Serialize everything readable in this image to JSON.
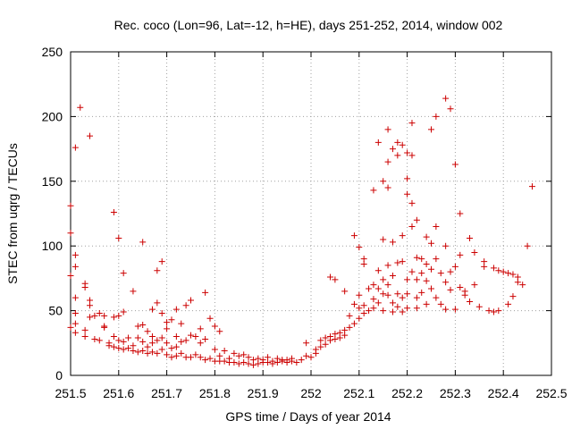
{
  "chart_data": {
    "type": "scatter",
    "title": "Rec. coco (Lon=96, Lat=-12, h=HE), days 251-252, 2014, window 002",
    "xlabel": "GPS time / Days of year 2014",
    "ylabel": "STEC from uqrg / TECUs",
    "xlim": [
      251.5,
      252.5
    ],
    "ylim": [
      0,
      250
    ],
    "xticks": [
      251.5,
      251.6,
      251.7,
      251.8,
      251.9,
      252.0,
      252.1,
      252.2,
      252.3,
      252.4,
      252.5
    ],
    "xtick_labels": [
      "251.5",
      "251.6",
      "251.7",
      "251.8",
      "251.9",
      "252",
      "252.1",
      "252.2",
      "252.3",
      "252.4",
      "252.5"
    ],
    "yticks": [
      0,
      50,
      100,
      150,
      200,
      250
    ],
    "ytick_labels": [
      "0",
      "50",
      "100",
      "150",
      "200",
      "250"
    ],
    "grid": true,
    "marker": "plus",
    "color": "#cc0000",
    "series": [
      {
        "name": "",
        "points": [
          [
            251.5,
            131
          ],
          [
            251.5,
            110
          ],
          [
            251.5,
            77
          ],
          [
            251.5,
            37
          ],
          [
            251.51,
            176
          ],
          [
            251.51,
            93
          ],
          [
            251.51,
            84
          ],
          [
            251.51,
            60
          ],
          [
            251.51,
            48
          ],
          [
            251.51,
            40
          ],
          [
            251.51,
            33
          ],
          [
            251.52,
            207
          ],
          [
            251.53,
            71
          ],
          [
            251.53,
            68
          ],
          [
            251.53,
            35
          ],
          [
            251.53,
            30
          ],
          [
            251.54,
            185
          ],
          [
            251.54,
            58
          ],
          [
            251.54,
            54
          ],
          [
            251.54,
            45
          ],
          [
            251.55,
            46
          ],
          [
            251.55,
            28
          ],
          [
            251.56,
            48
          ],
          [
            251.56,
            27
          ],
          [
            251.57,
            46
          ],
          [
            251.57,
            38
          ],
          [
            251.57,
            37
          ],
          [
            251.58,
            25
          ],
          [
            251.58,
            23
          ],
          [
            251.59,
            126
          ],
          [
            251.59,
            45
          ],
          [
            251.59,
            30
          ],
          [
            251.59,
            22
          ],
          [
            251.6,
            106
          ],
          [
            251.6,
            46
          ],
          [
            251.6,
            27
          ],
          [
            251.6,
            21
          ],
          [
            251.61,
            79
          ],
          [
            251.61,
            49
          ],
          [
            251.61,
            26
          ],
          [
            251.61,
            20
          ],
          [
            251.62,
            29
          ],
          [
            251.62,
            21
          ],
          [
            251.63,
            65
          ],
          [
            251.63,
            23
          ],
          [
            251.63,
            19
          ],
          [
            251.64,
            38
          ],
          [
            251.64,
            18
          ],
          [
            251.64,
            29
          ],
          [
            251.65,
            103
          ],
          [
            251.65,
            39
          ],
          [
            251.65,
            26
          ],
          [
            251.65,
            19
          ],
          [
            251.66,
            34
          ],
          [
            251.66,
            22
          ],
          [
            251.66,
            17
          ],
          [
            251.67,
            51
          ],
          [
            251.67,
            30
          ],
          [
            251.67,
            25
          ],
          [
            251.67,
            18
          ],
          [
            251.68,
            81
          ],
          [
            251.68,
            56
          ],
          [
            251.68,
            27
          ],
          [
            251.68,
            17
          ],
          [
            251.69,
            88
          ],
          [
            251.69,
            48
          ],
          [
            251.69,
            29
          ],
          [
            251.69,
            20
          ],
          [
            251.7,
            41
          ],
          [
            251.7,
            36
          ],
          [
            251.7,
            25
          ],
          [
            251.7,
            16
          ],
          [
            251.71,
            43
          ],
          [
            251.71,
            21
          ],
          [
            251.71,
            14
          ],
          [
            251.72,
            51
          ],
          [
            251.72,
            30
          ],
          [
            251.72,
            22
          ],
          [
            251.72,
            15
          ],
          [
            251.73,
            40
          ],
          [
            251.73,
            26
          ],
          [
            251.73,
            17
          ],
          [
            251.74,
            54
          ],
          [
            251.74,
            27
          ],
          [
            251.74,
            14
          ],
          [
            251.75,
            58
          ],
          [
            251.75,
            31
          ],
          [
            251.75,
            14
          ],
          [
            251.76,
            30
          ],
          [
            251.76,
            16
          ],
          [
            251.77,
            36
          ],
          [
            251.77,
            25
          ],
          [
            251.77,
            14
          ],
          [
            251.78,
            64
          ],
          [
            251.78,
            28
          ],
          [
            251.78,
            12
          ],
          [
            251.79,
            44
          ],
          [
            251.79,
            13
          ],
          [
            251.8,
            38
          ],
          [
            251.8,
            20
          ],
          [
            251.8,
            11
          ],
          [
            251.81,
            34
          ],
          [
            251.81,
            15
          ],
          [
            251.81,
            11
          ],
          [
            251.82,
            19
          ],
          [
            251.82,
            11
          ],
          [
            251.83,
            13
          ],
          [
            251.83,
            10
          ],
          [
            251.84,
            17
          ],
          [
            251.84,
            10
          ],
          [
            251.85,
            15
          ],
          [
            251.85,
            9
          ],
          [
            251.86,
            16
          ],
          [
            251.86,
            10
          ],
          [
            251.87,
            14
          ],
          [
            251.87,
            9
          ],
          [
            251.88,
            12
          ],
          [
            251.88,
            8
          ],
          [
            251.89,
            13
          ],
          [
            251.89,
            9
          ],
          [
            251.9,
            12
          ],
          [
            251.9,
            10
          ],
          [
            251.91,
            14
          ],
          [
            251.91,
            10
          ],
          [
            251.92,
            11
          ],
          [
            251.92,
            9
          ],
          [
            251.93,
            13
          ],
          [
            251.93,
            10
          ],
          [
            251.94,
            11
          ],
          [
            251.94,
            12
          ],
          [
            251.95,
            12
          ],
          [
            251.95,
            10
          ],
          [
            251.96,
            13
          ],
          [
            251.96,
            11
          ],
          [
            251.97,
            10
          ],
          [
            251.98,
            12
          ],
          [
            251.99,
            25
          ],
          [
            251.99,
            15
          ],
          [
            252.0,
            14
          ],
          [
            252.01,
            20
          ],
          [
            252.01,
            17
          ],
          [
            252.02,
            27
          ],
          [
            252.02,
            22
          ],
          [
            252.03,
            29
          ],
          [
            252.03,
            24
          ],
          [
            252.04,
            76
          ],
          [
            252.04,
            30
          ],
          [
            252.04,
            27
          ],
          [
            252.05,
            74
          ],
          [
            252.05,
            32
          ],
          [
            252.05,
            28
          ],
          [
            252.06,
            33
          ],
          [
            252.06,
            29
          ],
          [
            252.07,
            65
          ],
          [
            252.07,
            35
          ],
          [
            252.07,
            31
          ],
          [
            252.08,
            46
          ],
          [
            252.08,
            37
          ],
          [
            252.09,
            108
          ],
          [
            252.09,
            55
          ],
          [
            252.09,
            40
          ],
          [
            252.1,
            99
          ],
          [
            252.1,
            62
          ],
          [
            252.1,
            52
          ],
          [
            252.1,
            44
          ],
          [
            252.11,
            90
          ],
          [
            252.11,
            86
          ],
          [
            252.11,
            54
          ],
          [
            252.11,
            48
          ],
          [
            252.12,
            67
          ],
          [
            252.12,
            50
          ],
          [
            252.13,
            143
          ],
          [
            252.13,
            70
          ],
          [
            252.13,
            59
          ],
          [
            252.13,
            52
          ],
          [
            252.14,
            180
          ],
          [
            252.14,
            81
          ],
          [
            252.14,
            67
          ],
          [
            252.14,
            56
          ],
          [
            252.15,
            150
          ],
          [
            252.15,
            105
          ],
          [
            252.15,
            74
          ],
          [
            252.15,
            63
          ],
          [
            252.15,
            50
          ],
          [
            252.16,
            190
          ],
          [
            252.16,
            165
          ],
          [
            252.16,
            145
          ],
          [
            252.16,
            85
          ],
          [
            252.16,
            70
          ],
          [
            252.16,
            62
          ],
          [
            252.17,
            175
          ],
          [
            252.17,
            103
          ],
          [
            252.17,
            77
          ],
          [
            252.17,
            56
          ],
          [
            252.17,
            49
          ],
          [
            252.18,
            180
          ],
          [
            252.18,
            170
          ],
          [
            252.18,
            87
          ],
          [
            252.18,
            63
          ],
          [
            252.18,
            53
          ],
          [
            252.19,
            178
          ],
          [
            252.19,
            108
          ],
          [
            252.19,
            88
          ],
          [
            252.19,
            60
          ],
          [
            252.19,
            49
          ],
          [
            252.2,
            172
          ],
          [
            252.2,
            152
          ],
          [
            252.2,
            140
          ],
          [
            252.2,
            74
          ],
          [
            252.2,
            63
          ],
          [
            252.2,
            52
          ],
          [
            252.21,
            195
          ],
          [
            252.21,
            170
          ],
          [
            252.21,
            133
          ],
          [
            252.21,
            115
          ],
          [
            252.21,
            80
          ],
          [
            252.22,
            120
          ],
          [
            252.22,
            91
          ],
          [
            252.22,
            74
          ],
          [
            252.22,
            60
          ],
          [
            252.22,
            52
          ],
          [
            252.23,
            90
          ],
          [
            252.23,
            79
          ],
          [
            252.23,
            64
          ],
          [
            252.24,
            107
          ],
          [
            252.24,
            86
          ],
          [
            252.24,
            73
          ],
          [
            252.24,
            55
          ],
          [
            252.25,
            190
          ],
          [
            252.25,
            102
          ],
          [
            252.25,
            82
          ],
          [
            252.25,
            67
          ],
          [
            252.26,
            200
          ],
          [
            252.26,
            115
          ],
          [
            252.26,
            90
          ],
          [
            252.26,
            60
          ],
          [
            252.27,
            79
          ],
          [
            252.27,
            55
          ],
          [
            252.28,
            214
          ],
          [
            252.28,
            100
          ],
          [
            252.28,
            72
          ],
          [
            252.28,
            51
          ],
          [
            252.29,
            206
          ],
          [
            252.29,
            80
          ],
          [
            252.29,
            66
          ],
          [
            252.3,
            163
          ],
          [
            252.3,
            84
          ],
          [
            252.3,
            51
          ],
          [
            252.31,
            125
          ],
          [
            252.31,
            93
          ],
          [
            252.31,
            68
          ],
          [
            252.32,
            65
          ],
          [
            252.32,
            62
          ],
          [
            252.33,
            106
          ],
          [
            252.33,
            57
          ],
          [
            252.34,
            70
          ],
          [
            252.34,
            95
          ],
          [
            252.35,
            53
          ],
          [
            252.36,
            88
          ],
          [
            252.36,
            84
          ],
          [
            252.37,
            50
          ],
          [
            252.38,
            83
          ],
          [
            252.38,
            49
          ],
          [
            252.39,
            81
          ],
          [
            252.39,
            50
          ],
          [
            252.4,
            80
          ],
          [
            252.41,
            79
          ],
          [
            252.41,
            55
          ],
          [
            252.42,
            78
          ],
          [
            252.42,
            61
          ],
          [
            252.43,
            76
          ],
          [
            252.43,
            72
          ],
          [
            252.44,
            70
          ],
          [
            252.45,
            100
          ],
          [
            252.46,
            146
          ]
        ]
      }
    ]
  }
}
